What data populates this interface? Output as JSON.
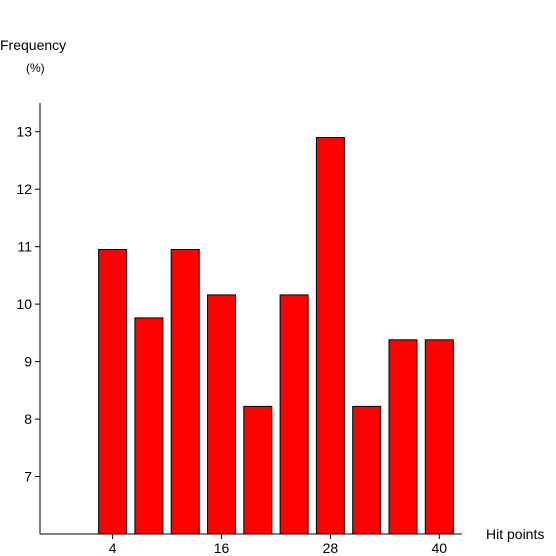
{
  "chart_data": {
    "type": "bar",
    "ylabel": "Frequency",
    "yunit": "(%)",
    "xlabel": "Hit points",
    "x": [
      4,
      8,
      12,
      16,
      20,
      24,
      28,
      32,
      36,
      40
    ],
    "values": [
      10.95,
      9.76,
      10.95,
      10.16,
      8.22,
      10.16,
      12.9,
      8.22,
      9.38,
      9.38
    ],
    "ylim": [
      6,
      13.5
    ],
    "xlim": [
      -4,
      42.5
    ],
    "yticks": [
      7,
      8,
      9,
      10,
      11,
      12,
      13
    ],
    "xticks": [
      4,
      16,
      28,
      40
    ],
    "bar_color": "#ff0000",
    "grid": false
  }
}
